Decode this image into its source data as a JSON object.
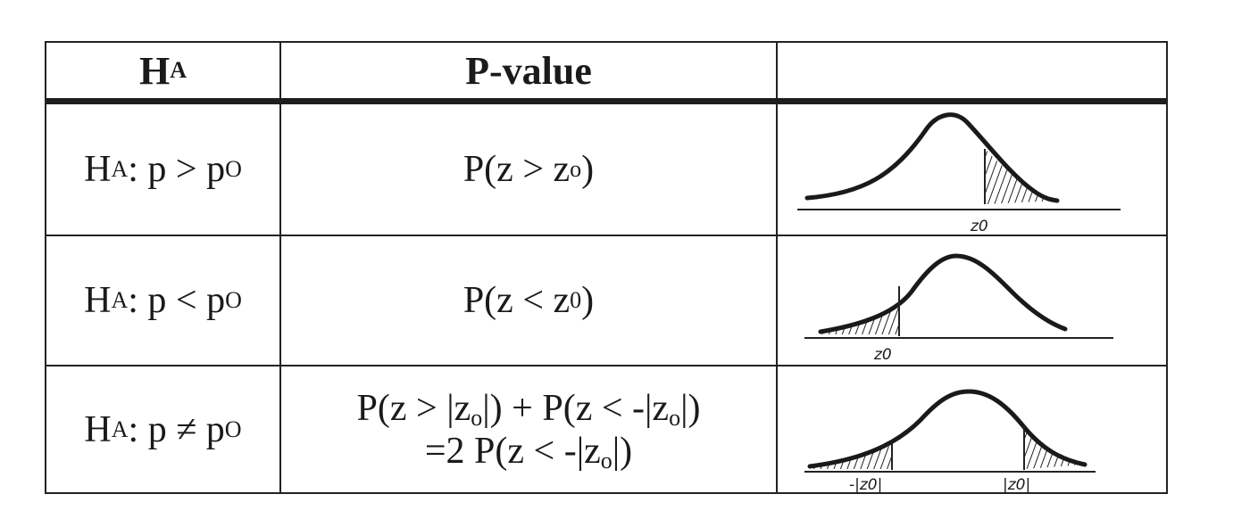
{
  "table": {
    "headers": {
      "hypothesis": "H",
      "hypothesis_sub": "A",
      "pvalue": "P-value",
      "sketch": ""
    },
    "rows": [
      {
        "ha_prefix": "H",
        "ha_sub": "A",
        "ha_mid": ": p > p",
        "ha_tail": "O",
        "pvalue_line1": {
          "pre": "P(z > z",
          "sub": "o",
          "post": ")"
        },
        "sketch_labels": [
          "z0"
        ],
        "tail": "right"
      },
      {
        "ha_prefix": "H",
        "ha_sub": "A",
        "ha_mid": ": p < p",
        "ha_tail": "O",
        "pvalue_line1": {
          "pre": "P(z < z",
          "sub": "0",
          "post": ")"
        },
        "sketch_labels": [
          "z0"
        ],
        "tail": "left"
      },
      {
        "ha_prefix": "H",
        "ha_sub": "A",
        "ha_mid": ": p ≠ p",
        "ha_tail": "O",
        "pvalue_line1": {
          "pre": "P(z > |z",
          "sub": "o",
          "mid": "|) + P(z < -|z",
          "sub2": "o",
          "post": "|)"
        },
        "pvalue_line2": {
          "pre": "=2 P(z < -|z",
          "sub": "o",
          "post": "|)"
        },
        "sketch_labels": [
          "-|z0|",
          "|z0|"
        ],
        "tail": "two-sided"
      }
    ]
  }
}
